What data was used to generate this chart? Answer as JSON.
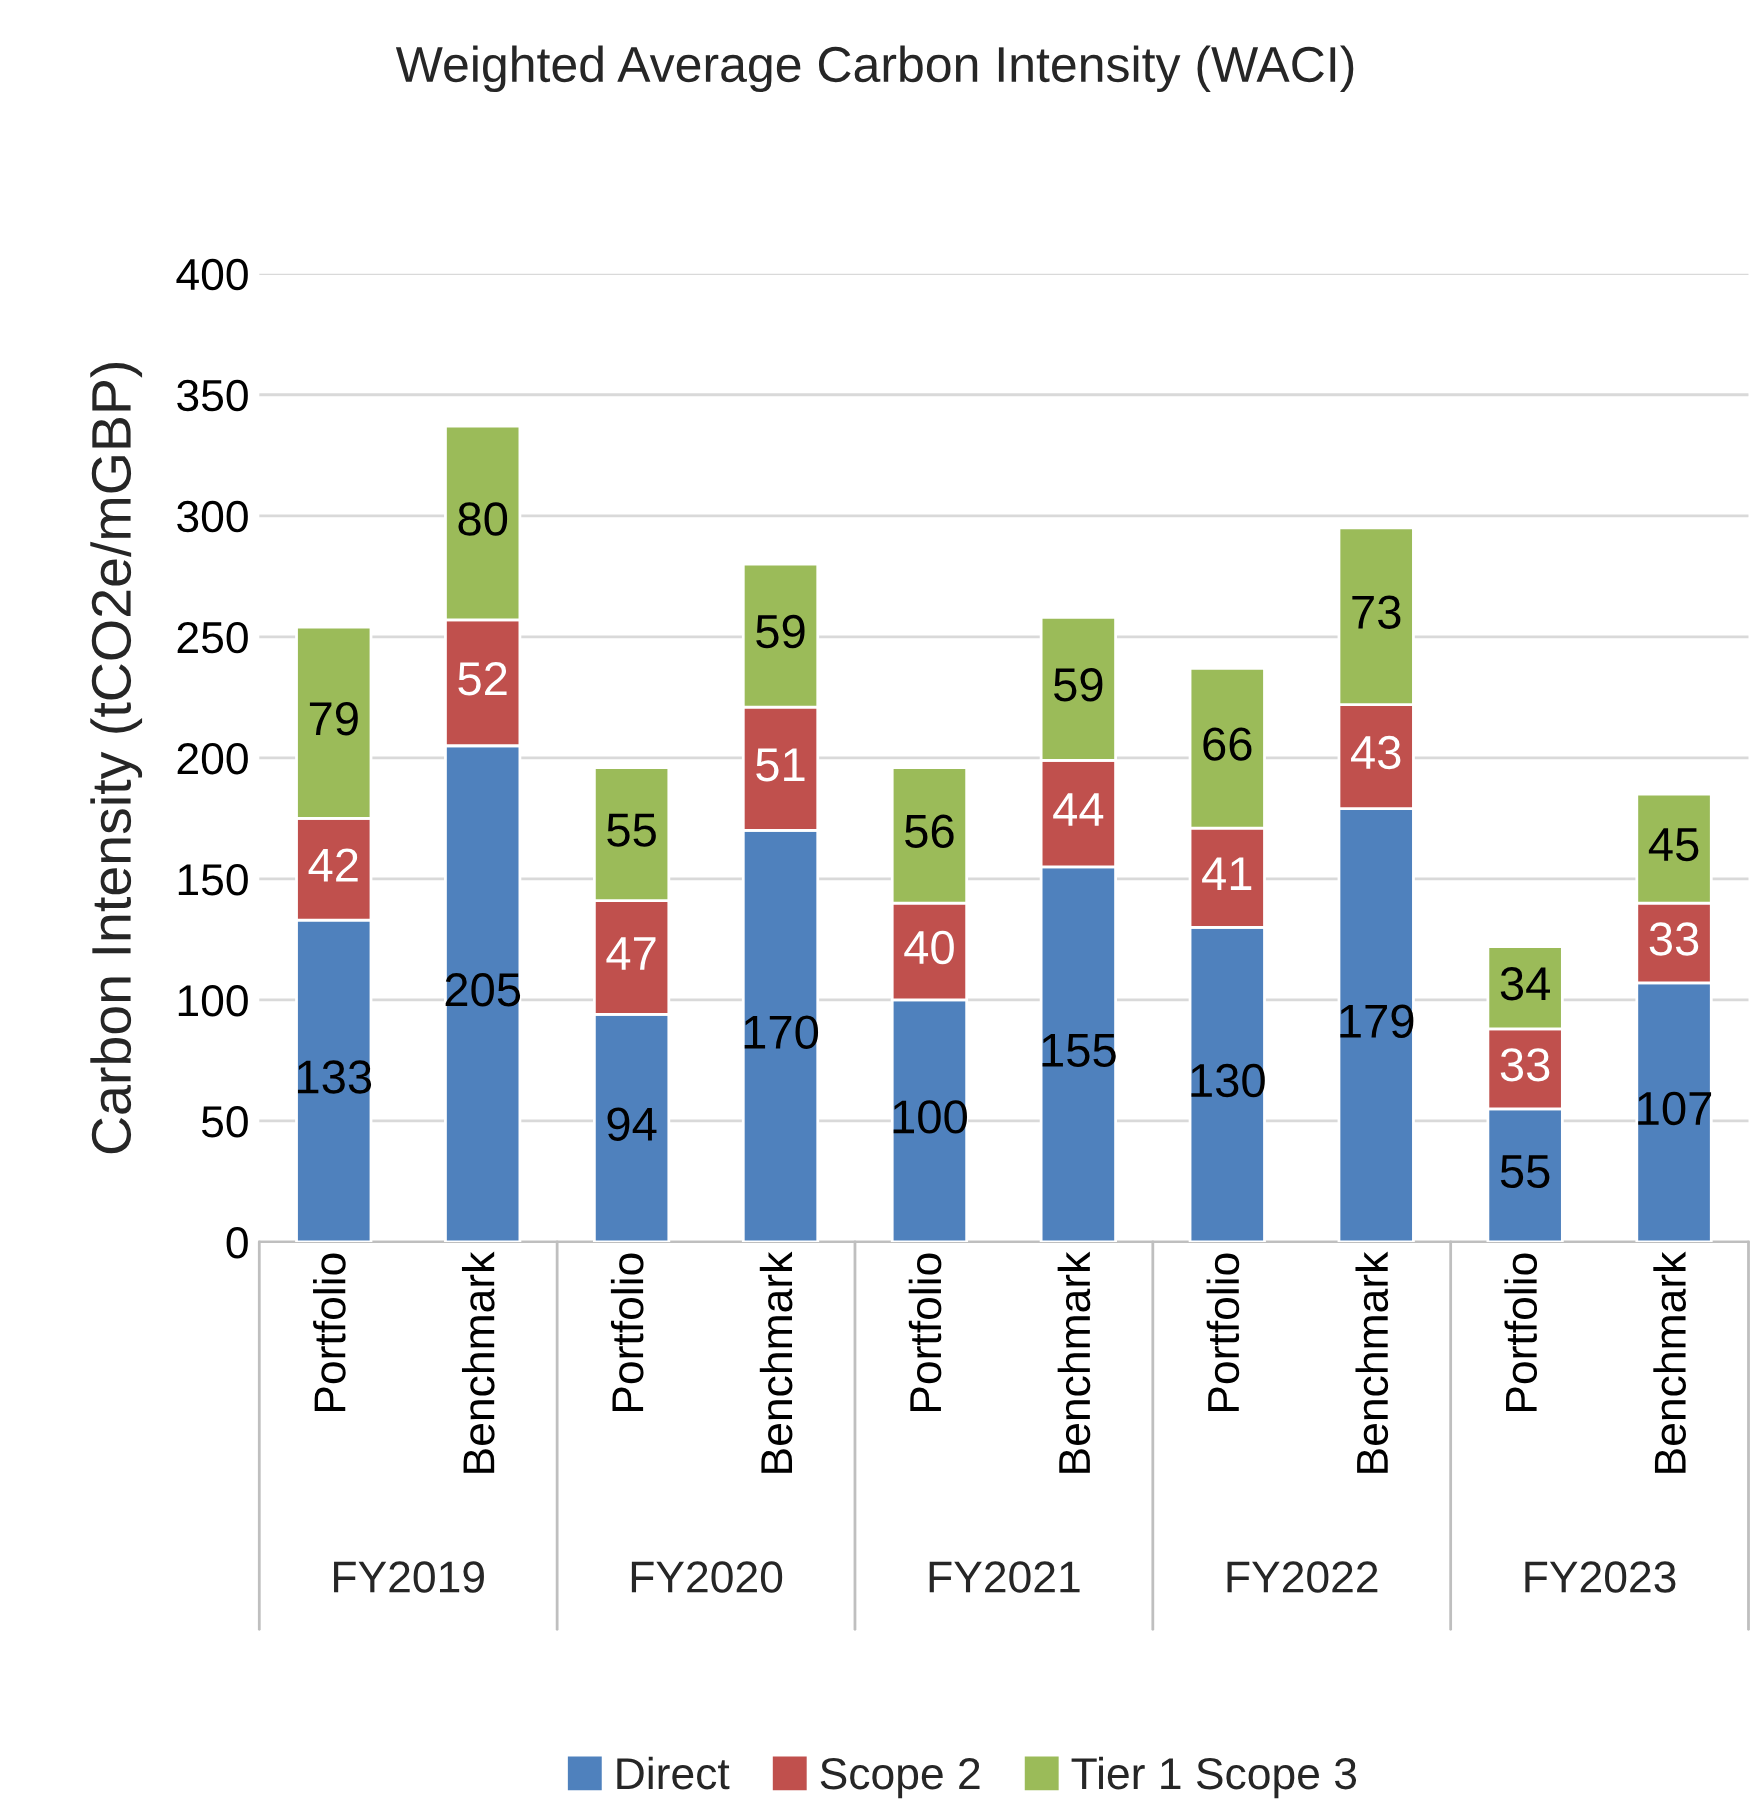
{
  "chart_data": {
    "type": "bar",
    "title": "Weighted Average Carbon Intensity (WACI)",
    "ylabel": "Carbon Intensity (tCO2e/mGBP)",
    "categories": [
      "Portfolio",
      "Benchmark",
      "Portfolio",
      "Benchmark",
      "Portfolio",
      "Benchmark",
      "Portfolio",
      "Benchmark",
      "Portfolio",
      "Benchmark"
    ],
    "annotations": [
      "FY2019",
      "FY2020",
      "FY2021",
      "FY2022",
      "FY2023"
    ],
    "stacked": true,
    "series": [
      {
        "name": "Direct",
        "color": "#4f81bd",
        "values": [
          133,
          205,
          94,
          170,
          100,
          155,
          130,
          179,
          55,
          107
        ]
      },
      {
        "name": "Scope 2",
        "color": "#c0504d",
        "values": [
          42,
          52,
          47,
          51,
          40,
          44,
          41,
          43,
          33,
          33
        ]
      },
      {
        "name": "Tier 1 Scope 3",
        "color": "#9bbb59",
        "values": [
          79,
          80,
          55,
          59,
          56,
          59,
          66,
          73,
          34,
          45
        ]
      }
    ],
    "ylim": [
      0,
      400
    ],
    "yticks": [
      0,
      50,
      100,
      150,
      200,
      250,
      300,
      350,
      400
    ],
    "grid": "y",
    "legend": "bottom",
    "data_labels": true
  }
}
